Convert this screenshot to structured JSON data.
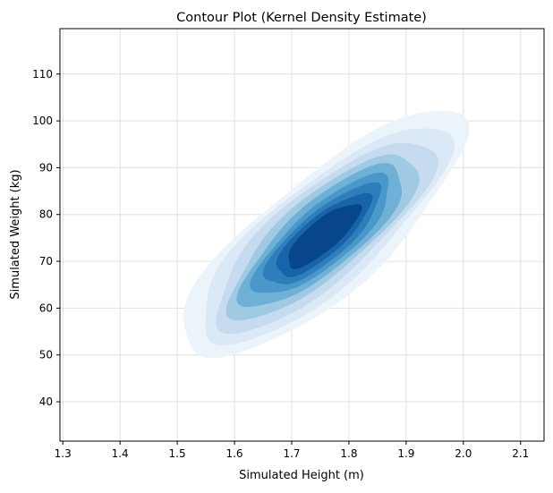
{
  "chart_data": {
    "type": "contour",
    "title": "Contour Plot (Kernel Density Estimate)",
    "xlabel": "Simulated Height (m)",
    "ylabel": "Simulated Weight (kg)",
    "xlim": [
      1.295,
      2.141
    ],
    "ylim": [
      31.6,
      119.7
    ],
    "xticks": [
      "1.3",
      "1.4",
      "1.5",
      "1.6",
      "1.7",
      "1.8",
      "1.9",
      "2.0",
      "2.1"
    ],
    "yticks": [
      "40",
      "50",
      "60",
      "70",
      "80",
      "90",
      "100",
      "110"
    ],
    "grid": true,
    "distribution": {
      "mean_x": 1.755,
      "mean_y": 75.5,
      "std_x": 0.075,
      "std_y": 8.0,
      "correlation": 0.8
    },
    "levels": [
      {
        "radius_sigma": 3.3,
        "color": "#ebf3fb"
      },
      {
        "radius_sigma": 2.9,
        "color": "#dbe9f6"
      },
      {
        "radius_sigma": 2.55,
        "color": "#c6dbef"
      },
      {
        "radius_sigma": 2.2,
        "color": "#a0cae1"
      },
      {
        "radius_sigma": 1.9,
        "color": "#6fb0d7"
      },
      {
        "radius_sigma": 1.6,
        "color": "#4a98c9"
      },
      {
        "radius_sigma": 1.35,
        "color": "#2f7ebc"
      },
      {
        "radius_sigma": 1.1,
        "color": "#1764ab"
      },
      {
        "radius_sigma": 0.85,
        "color": "#08468b"
      }
    ]
  }
}
